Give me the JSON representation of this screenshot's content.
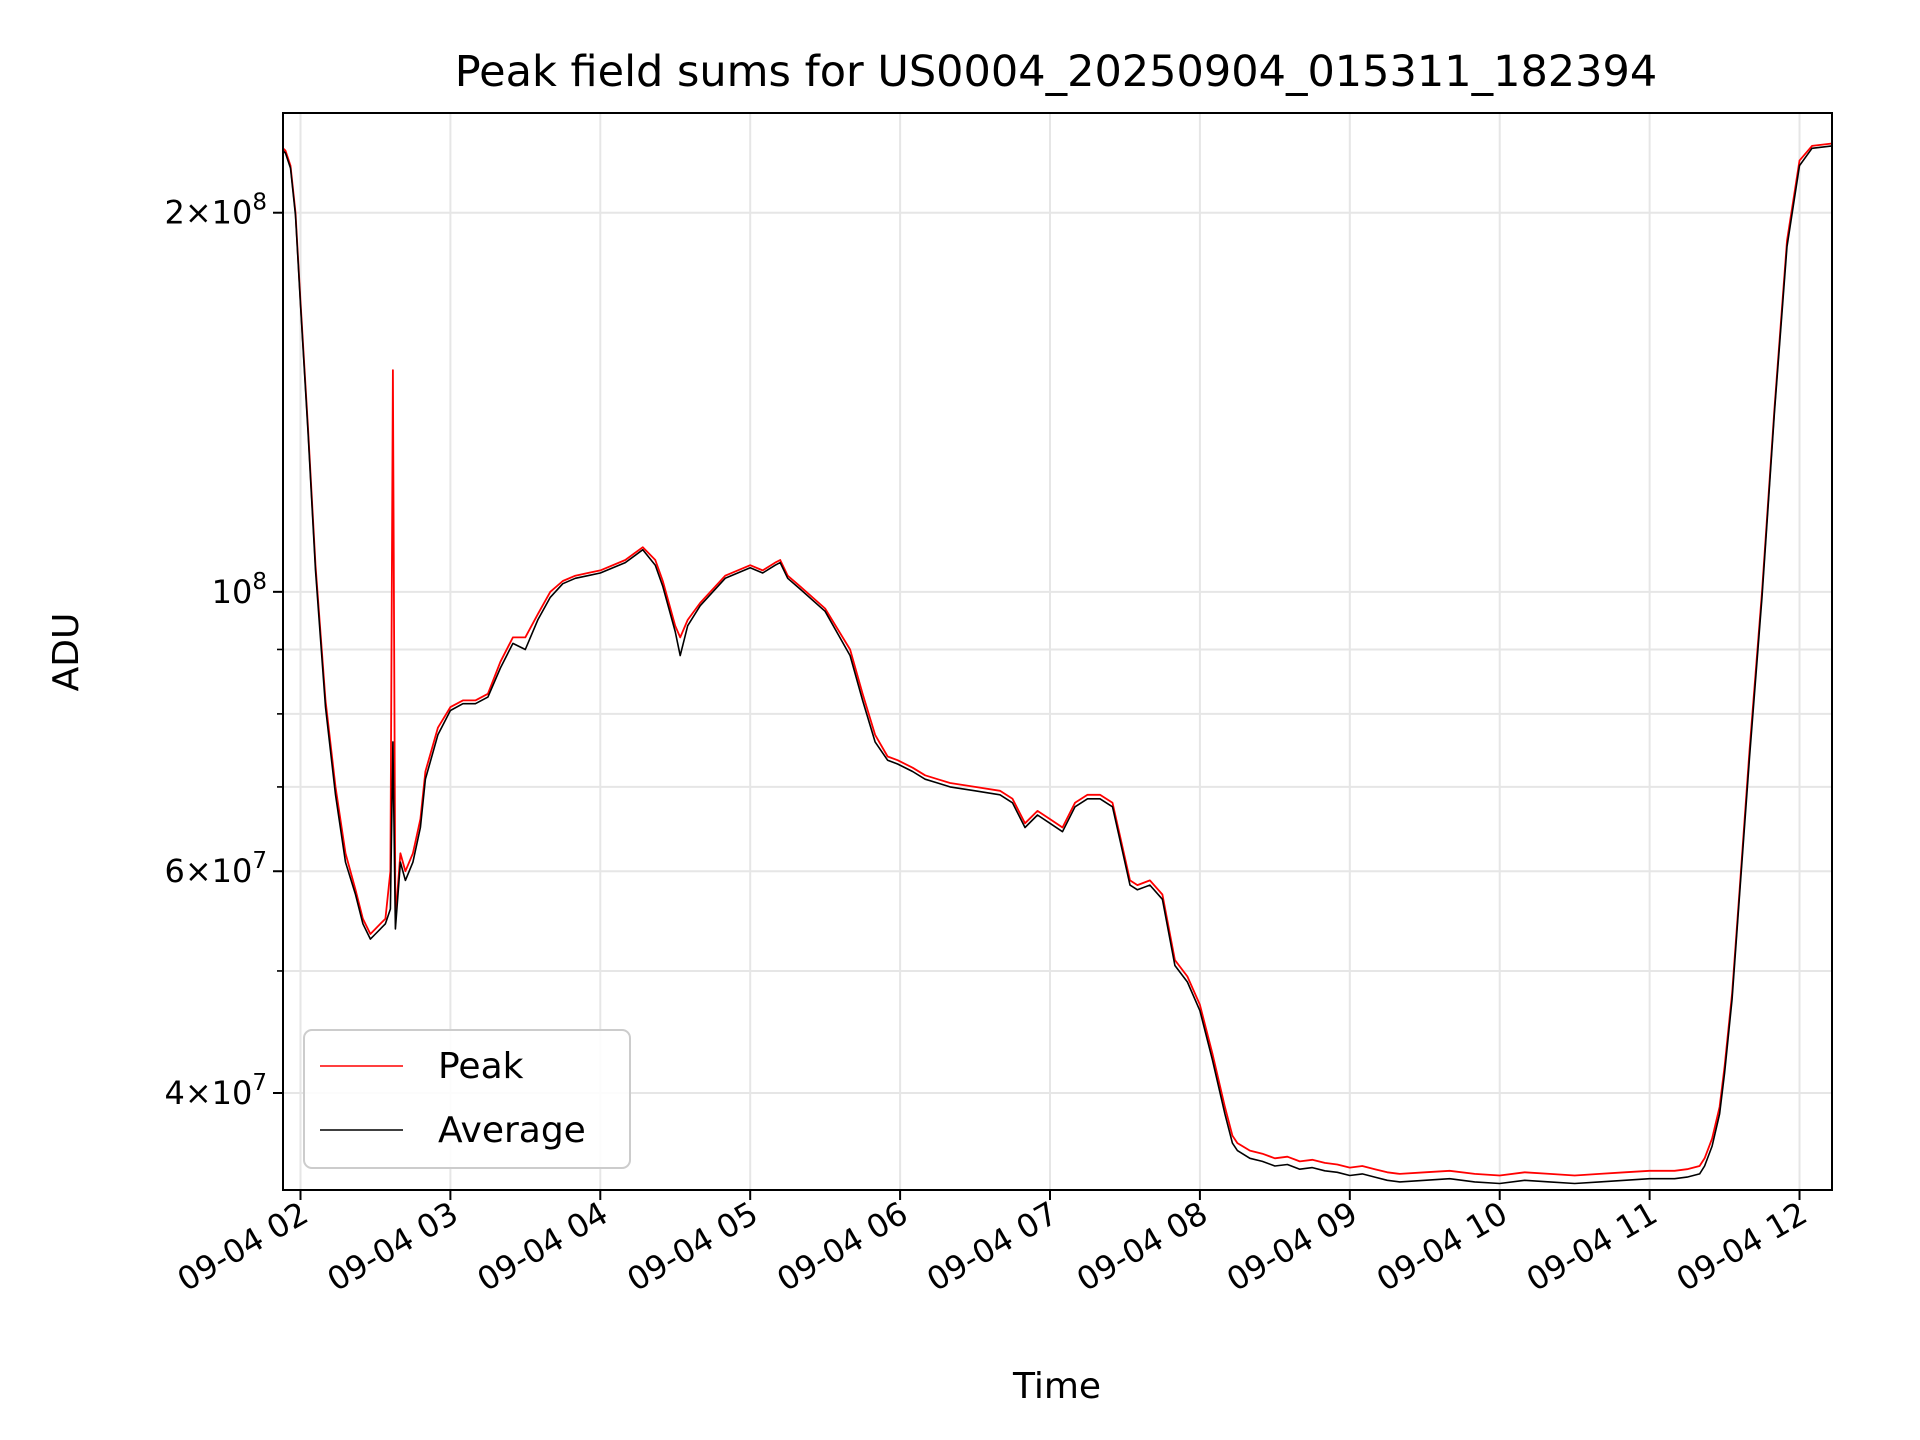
{
  "chart_data": {
    "type": "line",
    "title": "Peak field sums for US0004_20250904_015311_182394",
    "xlabel": "Time",
    "ylabel": "ADU",
    "y_scale": "log",
    "ylim": [
      33500000,
      240000000
    ],
    "xlim": [
      "09-04 01:53",
      "09-04 12:13"
    ],
    "grid": true,
    "legend_position": "lower-left",
    "x_ticks": [
      "09-04 02",
      "09-04 03",
      "09-04 04",
      "09-04 05",
      "09-04 06",
      "09-04 07",
      "09-04 08",
      "09-04 09",
      "09-04 10",
      "09-04 11",
      "09-04 12"
    ],
    "y_major_ticks": [
      {
        "value": 40000000,
        "mantissa": "4",
        "exponent": "7"
      },
      {
        "value": 60000000,
        "mantissa": "6",
        "exponent": "7"
      },
      {
        "value": 100000000,
        "mantissa": "",
        "exponent": "8"
      },
      {
        "value": 200000000,
        "mantissa": "2",
        "exponent": "8"
      }
    ],
    "y_minor_ticks": [
      50000000,
      70000000,
      80000000,
      90000000
    ],
    "series": [
      {
        "name": "Peak",
        "color": "#ff0000",
        "x": [
          "01:53",
          "01:54",
          "01:56",
          "01:58",
          "02:00",
          "02:03",
          "02:06",
          "02:10",
          "02:14",
          "02:18",
          "02:22",
          "02:25",
          "02:28",
          "02:30",
          "02:32",
          "02:34",
          "02:36",
          "02:37",
          "02:38",
          "02:40",
          "02:42",
          "02:45",
          "02:48",
          "02:50",
          "02:55",
          "03:00",
          "03:05",
          "03:10",
          "03:15",
          "03:20",
          "03:25",
          "03:30",
          "03:35",
          "03:40",
          "03:45",
          "03:50",
          "03:55",
          "04:00",
          "04:10",
          "04:17",
          "04:22",
          "04:25",
          "04:30",
          "04:32",
          "04:35",
          "04:40",
          "04:50",
          "05:00",
          "05:05",
          "05:10",
          "05:12",
          "05:15",
          "05:20",
          "05:30",
          "05:40",
          "05:45",
          "05:50",
          "05:55",
          "05:59",
          "06:05",
          "06:10",
          "06:15",
          "06:20",
          "06:30",
          "06:40",
          "06:45",
          "06:50",
          "06:55",
          "07:00",
          "07:05",
          "07:10",
          "07:15",
          "07:20",
          "07:25",
          "07:28",
          "07:32",
          "07:35",
          "07:40",
          "07:45",
          "07:50",
          "07:55",
          "08:00",
          "08:05",
          "08:10",
          "08:13",
          "08:15",
          "08:20",
          "08:25",
          "08:30",
          "08:35",
          "08:40",
          "08:45",
          "08:50",
          "08:55",
          "09:00",
          "09:05",
          "09:10",
          "09:15",
          "09:20",
          "09:30",
          "09:40",
          "09:50",
          "10:00",
          "10:10",
          "10:20",
          "10:30",
          "10:40",
          "10:50",
          "11:00",
          "11:10",
          "11:15",
          "11:20",
          "11:22",
          "11:25",
          "11:28",
          "11:30",
          "11:33",
          "11:36",
          "11:40",
          "11:45",
          "11:50",
          "11:55",
          "12:00",
          "12:05",
          "12:13"
        ],
        "y": [
          225000000,
          224000000,
          218000000,
          200000000,
          170000000,
          135000000,
          105000000,
          82000000,
          70000000,
          62000000,
          58000000,
          55000000,
          53500000,
          54000000,
          54500000,
          55000000,
          60000000,
          150000000,
          55000000,
          62000000,
          60000000,
          62000000,
          66000000,
          72000000,
          78000000,
          81000000,
          82000000,
          82000000,
          83000000,
          88000000,
          92000000,
          92000000,
          96000000,
          100000000,
          102000000,
          103000000,
          103500000,
          104000000,
          106000000,
          108500000,
          106000000,
          102000000,
          94000000,
          92000000,
          95000000,
          98000000,
          103000000,
          105000000,
          104000000,
          105500000,
          106000000,
          103000000,
          101000000,
          97000000,
          90000000,
          83000000,
          77000000,
          74000000,
          73500000,
          72500000,
          71500000,
          71000000,
          70500000,
          70000000,
          69500000,
          68500000,
          65500000,
          67000000,
          66000000,
          65000000,
          68000000,
          69000000,
          69000000,
          68000000,
          64000000,
          59000000,
          58500000,
          59000000,
          57500000,
          51000000,
          49500000,
          47000000,
          43000000,
          39000000,
          37000000,
          36500000,
          36000000,
          35800000,
          35500000,
          35600000,
          35300000,
          35400000,
          35200000,
          35100000,
          34900000,
          35000000,
          34800000,
          34600000,
          34500000,
          34600000,
          34700000,
          34500000,
          34400000,
          34600000,
          34500000,
          34400000,
          34500000,
          34600000,
          34700000,
          34700000,
          34800000,
          35000000,
          35500000,
          36800000,
          39000000,
          42000000,
          48000000,
          58000000,
          75000000,
          100000000,
          140000000,
          190000000,
          220000000,
          226000000,
          227000000
        ]
      },
      {
        "name": "Average",
        "color": "#000000",
        "x": [
          "01:53",
          "01:54",
          "01:56",
          "01:58",
          "02:00",
          "02:03",
          "02:06",
          "02:10",
          "02:14",
          "02:18",
          "02:22",
          "02:25",
          "02:28",
          "02:30",
          "02:32",
          "02:34",
          "02:36",
          "02:37",
          "02:38",
          "02:40",
          "02:42",
          "02:45",
          "02:48",
          "02:50",
          "02:55",
          "03:00",
          "03:05",
          "03:10",
          "03:15",
          "03:20",
          "03:25",
          "03:30",
          "03:35",
          "03:40",
          "03:45",
          "03:50",
          "03:55",
          "04:00",
          "04:10",
          "04:17",
          "04:22",
          "04:25",
          "04:30",
          "04:32",
          "04:35",
          "04:40",
          "04:50",
          "05:00",
          "05:05",
          "05:10",
          "05:12",
          "05:15",
          "05:20",
          "05:30",
          "05:40",
          "05:45",
          "05:50",
          "05:55",
          "05:59",
          "06:05",
          "06:10",
          "06:15",
          "06:20",
          "06:30",
          "06:40",
          "06:45",
          "06:50",
          "06:55",
          "07:00",
          "07:05",
          "07:10",
          "07:15",
          "07:20",
          "07:25",
          "07:28",
          "07:32",
          "07:35",
          "07:40",
          "07:45",
          "07:50",
          "07:55",
          "08:00",
          "08:05",
          "08:10",
          "08:13",
          "08:15",
          "08:20",
          "08:25",
          "08:30",
          "08:35",
          "08:40",
          "08:45",
          "08:50",
          "08:55",
          "09:00",
          "09:05",
          "09:10",
          "09:15",
          "09:20",
          "09:30",
          "09:40",
          "09:50",
          "10:00",
          "10:10",
          "10:20",
          "10:30",
          "10:40",
          "10:50",
          "11:00",
          "11:10",
          "11:15",
          "11:20",
          "11:22",
          "11:25",
          "11:28",
          "11:30",
          "11:33",
          "11:36",
          "11:40",
          "11:45",
          "11:50",
          "11:55",
          "12:00",
          "12:05",
          "12:13"
        ],
        "y": [
          224000000,
          223000000,
          217000000,
          199000000,
          169000000,
          134000000,
          104000000,
          81000000,
          69000000,
          61000000,
          57500000,
          54500000,
          53000000,
          53500000,
          54000000,
          54500000,
          56000000,
          76000000,
          54000000,
          61000000,
          59000000,
          61000000,
          65000000,
          71000000,
          77000000,
          80500000,
          81500000,
          81500000,
          82500000,
          87000000,
          91000000,
          90000000,
          95000000,
          99000000,
          101500000,
          102500000,
          103000000,
          103500000,
          105500000,
          108000000,
          105000000,
          101000000,
          93000000,
          89000000,
          94000000,
          97500000,
          102500000,
          104500000,
          103500000,
          105000000,
          105500000,
          102500000,
          100500000,
          96500000,
          89000000,
          82000000,
          76000000,
          73500000,
          73000000,
          72000000,
          71000000,
          70500000,
          70000000,
          69500000,
          69000000,
          68000000,
          65000000,
          66500000,
          65500000,
          64500000,
          67500000,
          68500000,
          68500000,
          67500000,
          63500000,
          58500000,
          58000000,
          58500000,
          57000000,
          50500000,
          49000000,
          46500000,
          42500000,
          38500000,
          36500000,
          36000000,
          35500000,
          35300000,
          35000000,
          35100000,
          34800000,
          34900000,
          34700000,
          34600000,
          34400000,
          34500000,
          34300000,
          34100000,
          34000000,
          34100000,
          34200000,
          34000000,
          33900000,
          34100000,
          34000000,
          33900000,
          34000000,
          34100000,
          34200000,
          34200000,
          34300000,
          34500000,
          35000000,
          36300000,
          38500000,
          41500000,
          47500000,
          57500000,
          74000000,
          99000000,
          139000000,
          188000000,
          218000000,
          225000000,
          226000000
        ]
      }
    ]
  }
}
